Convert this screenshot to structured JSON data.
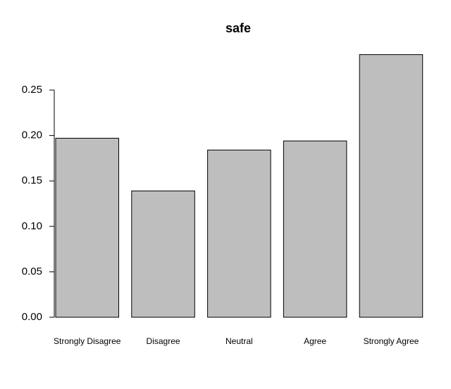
{
  "chart_data": {
    "type": "bar",
    "title": "safe",
    "categories": [
      "Strongly Disagree",
      "Disagree",
      "Neutral",
      "Agree",
      "Strongly Agree"
    ],
    "values": [
      0.197,
      0.139,
      0.184,
      0.194,
      0.289
    ],
    "color": "#bebebe",
    "ylim": [
      0,
      0.3
    ],
    "yticks": [
      {
        "value": 0,
        "label": "0.00"
      },
      {
        "value": 0.05,
        "label": "0.05"
      },
      {
        "value": 0.1,
        "label": "0.10"
      },
      {
        "value": 0.15,
        "label": "0.15"
      },
      {
        "value": 0.2,
        "label": "0.20"
      },
      {
        "value": 0.25,
        "label": "0.25"
      }
    ],
    "grid": false
  }
}
